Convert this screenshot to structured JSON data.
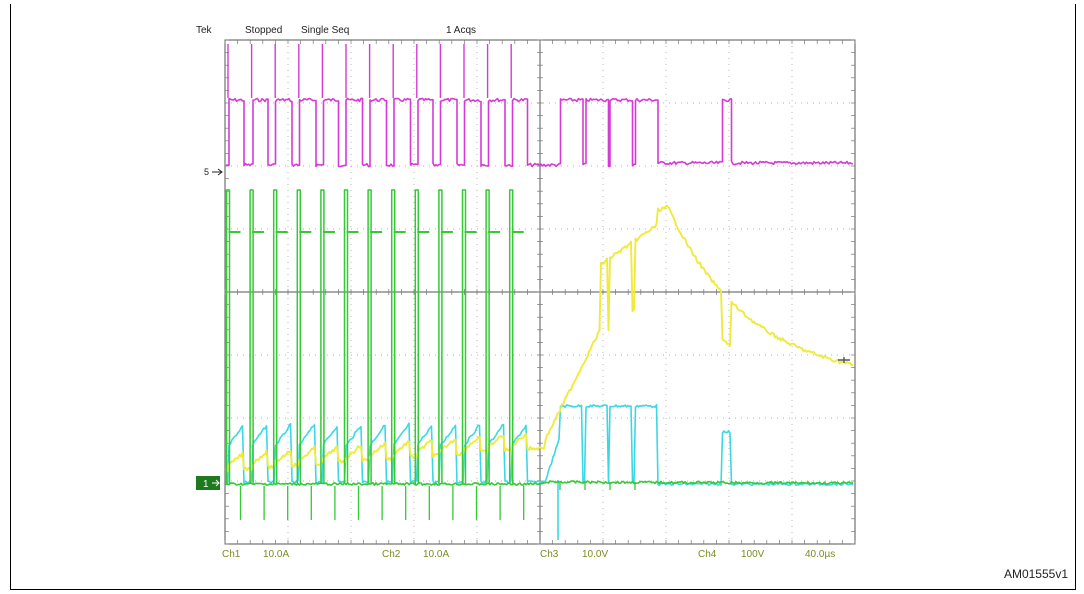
{
  "header": {
    "brand": "Tek",
    "state": "Stopped",
    "mode": "Single Seq",
    "acqs": "1 Acqs"
  },
  "footer": {
    "ch1_label": "Ch1",
    "ch1_scale": "10.0A",
    "ch2_label": "Ch2",
    "ch2_scale": "10.0A",
    "ch3_label": "Ch3",
    "ch3_scale": "10.0V",
    "ch4_label": "Ch4",
    "ch4_scale": "100V",
    "timebase": "40.0µs"
  },
  "markers": {
    "ch4_ref": "5",
    "ground_ref": "1"
  },
  "figure_id": "AM01555v1",
  "colors": {
    "magenta": "#d63ad6",
    "green": "#35c935",
    "yellow": "#f0ea3a",
    "cyan": "#3ad8e6",
    "grid": "#9a9a9a",
    "marker_bg": "#1f7a1f"
  },
  "chart_data": {
    "type": "line",
    "grid": true,
    "x_divisions": 10,
    "y_divisions": 8,
    "xlim": [
      0,
      10
    ],
    "ylim": [
      -4,
      4
    ],
    "series": [
      {
        "color": "magenta",
        "points": []
      },
      {
        "color": "green",
        "points": []
      },
      {
        "color": "yellow",
        "points": []
      },
      {
        "color": "cyan",
        "points": []
      }
    ]
  }
}
